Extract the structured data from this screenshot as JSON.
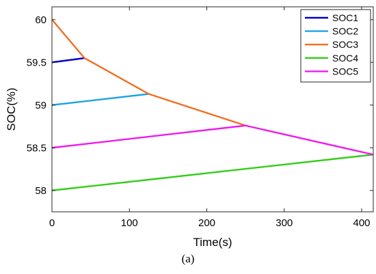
{
  "chart_data": {
    "type": "line",
    "title": "",
    "xlabel": "Time(s)",
    "ylabel": "SOC(%)",
    "xlim": [
      0,
      415
    ],
    "ylim": [
      57.75,
      60.15
    ],
    "xticks": [
      0,
      100,
      200,
      300,
      400
    ],
    "yticks": [
      58,
      58.5,
      59,
      59.5,
      60
    ],
    "ytick_labels": [
      "58",
      "58.5",
      "59",
      "59.5",
      "60"
    ],
    "grid": false,
    "legend_position": "top-right",
    "series": [
      {
        "name": "SOC1",
        "color": "#0000cc",
        "x": [
          0,
          42
        ],
        "y": [
          59.5,
          59.55
        ]
      },
      {
        "name": "SOC2",
        "color": "#1aa3e8",
        "x": [
          0,
          125
        ],
        "y": [
          59.0,
          59.13
        ]
      },
      {
        "name": "SOC3",
        "color": "#f26d21",
        "x": [
          0,
          42,
          125,
          250
        ],
        "y": [
          60.0,
          59.55,
          59.13,
          58.76
        ]
      },
      {
        "name": "SOC4",
        "color": "#33cc1a",
        "x": [
          0,
          415
        ],
        "y": [
          58.0,
          58.42
        ]
      },
      {
        "name": "SOC5",
        "color": "#ee1aee",
        "x": [
          0,
          250,
          415
        ],
        "y": [
          58.5,
          58.76,
          58.42
        ]
      }
    ]
  },
  "caption": "(a)"
}
